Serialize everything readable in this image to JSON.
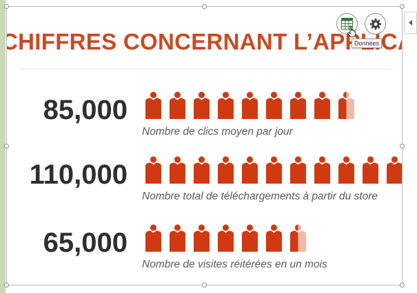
{
  "header": {
    "title": "CHIFFRES CONCERNANT L’APPLICATION"
  },
  "toolbar": {
    "data_icon": "table-grid-icon",
    "settings_icon": "gear-icon",
    "tooltip": "Données"
  },
  "colors": {
    "accent": "#c94a22",
    "person": "#d03a12",
    "person_faded": "#f2b9a4",
    "number": "#2f2f2f",
    "data_icon": "#2e7d32"
  },
  "rows": [
    {
      "value": "85,000",
      "label": "Nombre de clics moyen par jour",
      "icon_count": 8.5
    },
    {
      "value": "110,000",
      "label": "Nombre total de téléchargements à partir du store",
      "icon_count": 11
    },
    {
      "value": "65,000",
      "label": "Nombre de visites réitérées en un mois",
      "icon_count": 6.5
    }
  ]
}
